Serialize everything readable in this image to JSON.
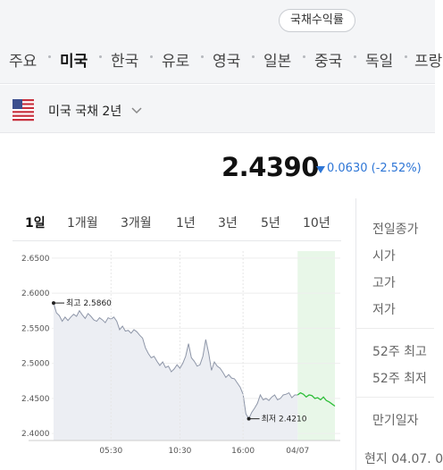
{
  "top_chip": {
    "label": "국채수익률"
  },
  "country_tabs": [
    "주요",
    "미국",
    "한국",
    "유로",
    "영국",
    "일본",
    "중국",
    "독일",
    "프랑"
  ],
  "active_country": "미국",
  "bond_selector": {
    "label": "미국 국채 2년",
    "flag_icon": "us-flag-icon"
  },
  "quote": {
    "price": "2.4390",
    "change": "0.0630 (-2.52%)",
    "direction": "down",
    "color": "#2e76d6"
  },
  "period_tabs": [
    "1일",
    "1개월",
    "3개월",
    "1년",
    "3년",
    "5년",
    "10년"
  ],
  "active_period": "1일",
  "info_panel": [
    "전일종가",
    "시가",
    "고가",
    "저가",
    "52주 최고",
    "52주 최저",
    "만기일자"
  ],
  "footer": "현지 04.07. 0",
  "chart_data": {
    "type": "line",
    "ylim": [
      2.39,
      2.66
    ],
    "y_ticks": [
      "2.6500",
      "2.6000",
      "2.5500",
      "2.5000",
      "2.4500",
      "2.4000"
    ],
    "x_ticks": [
      "05:30",
      "10:30",
      "16:00",
      "04/07"
    ],
    "annotations": {
      "high": "최고 2.5860",
      "low": "최저 2.4210"
    },
    "series": [
      {
        "values": [
          2.586,
          2.572,
          2.568,
          2.56,
          2.566,
          2.561,
          2.566,
          2.57,
          2.567,
          2.575,
          2.569,
          2.564,
          2.571,
          2.567,
          2.562,
          2.56,
          2.565,
          2.562,
          2.558,
          2.565,
          2.563,
          2.566,
          2.56,
          2.548,
          2.553,
          2.546,
          2.547,
          2.543,
          2.548,
          2.545,
          2.54,
          2.536,
          2.522,
          2.514,
          2.508,
          2.51,
          2.503,
          2.497,
          2.502,
          2.494,
          2.496,
          2.488,
          2.492,
          2.498,
          2.493,
          2.5,
          2.51,
          2.528,
          2.508,
          2.503,
          2.496,
          2.498,
          2.51,
          2.534,
          2.515,
          2.49,
          2.502,
          2.496,
          2.493,
          2.487,
          2.48,
          2.484,
          2.479,
          2.478,
          2.472,
          2.466,
          2.456,
          2.428,
          2.421,
          2.43,
          2.436,
          2.443,
          2.455,
          2.448,
          2.45,
          2.447,
          2.452,
          2.455,
          2.448,
          2.45,
          2.455,
          2.456,
          2.458,
          2.451,
          2.455,
          2.455
        ]
      },
      {
        "values": [
          2.455,
          2.458,
          2.456,
          2.452,
          2.455,
          2.454,
          2.45,
          2.451,
          2.448,
          2.452,
          2.447,
          2.445,
          2.442,
          2.439
        ]
      }
    ]
  }
}
